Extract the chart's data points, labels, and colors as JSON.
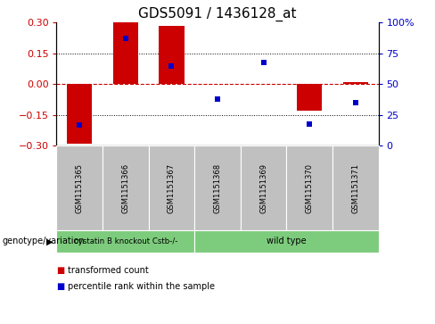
{
  "title": "GDS5091 / 1436128_at",
  "samples": [
    "GSM1151365",
    "GSM1151366",
    "GSM1151367",
    "GSM1151368",
    "GSM1151369",
    "GSM1151370",
    "GSM1151371"
  ],
  "red_values": [
    -0.29,
    0.3,
    0.285,
    0.0,
    0.0,
    -0.13,
    0.01
  ],
  "blue_values_pct": [
    17,
    87,
    65,
    38,
    68,
    18,
    35
  ],
  "ylim": [
    -0.3,
    0.3
  ],
  "yticks_left": [
    -0.3,
    -0.15,
    0,
    0.15,
    0.3
  ],
  "yticks_right": [
    0,
    25,
    50,
    75,
    100
  ],
  "ytick_right_labels": [
    "0",
    "25",
    "50",
    "75",
    "100%"
  ],
  "hlines_dotted": [
    -0.15,
    0.15
  ],
  "hline_dashed": 0,
  "red_color": "#cc0000",
  "blue_color": "#0000cc",
  "bar_width": 0.55,
  "group1_label": "cystatin B knockout Cstb-/-",
  "group2_label": "wild type",
  "group_color": "#7dcc7d",
  "group1_count": 3,
  "group2_count": 4,
  "legend_red": "transformed count",
  "legend_blue": "percentile rank within the sample",
  "genotype_label": "genotype/variation",
  "plot_bg": "#ffffff",
  "tick_area_bg": "#c0c0c0",
  "title_fontsize": 11,
  "axis_fontsize": 8,
  "tick_label_fontsize": 7,
  "sample_fontsize": 6,
  "group_fontsize": 7,
  "legend_fontsize": 7,
  "genotype_fontsize": 7
}
